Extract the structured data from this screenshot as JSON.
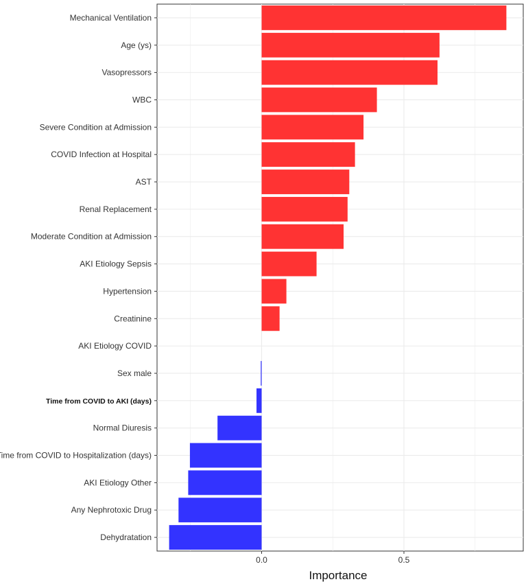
{
  "chart_data": {
    "type": "bar",
    "orientation": "horizontal",
    "title": "",
    "xlabel": "Importance",
    "ylabel": "",
    "xlim": [
      -0.325,
      0.925
    ],
    "x_ticks": [
      {
        "value": 0,
        "label": "0.0"
      },
      {
        "value": 0.5,
        "label": "0.5"
      }
    ],
    "grid": true,
    "positive_color": "#ff3333",
    "negative_color": "#3333ff",
    "categories": [
      {
        "label": "Mechanical Ventilation",
        "value": 0.86,
        "bold": false
      },
      {
        "label": "Age (ys)",
        "value": 0.625,
        "bold": false
      },
      {
        "label": "Vasopressors",
        "value": 0.618,
        "bold": false
      },
      {
        "label": "WBC",
        "value": 0.405,
        "bold": false
      },
      {
        "label": "Severe Condition at Admission",
        "value": 0.358,
        "bold": false
      },
      {
        "label": "COVID Infection at Hospital",
        "value": 0.328,
        "bold": false
      },
      {
        "label": "AST",
        "value": 0.308,
        "bold": false
      },
      {
        "label": "Renal Replacement",
        "value": 0.302,
        "bold": false
      },
      {
        "label": "Moderate Condition at Admission",
        "value": 0.288,
        "bold": false
      },
      {
        "label": "AKI Etiology Sepsis",
        "value": 0.193,
        "bold": false
      },
      {
        "label": "Hypertension",
        "value": 0.087,
        "bold": false
      },
      {
        "label": "Creatinine",
        "value": 0.063,
        "bold": false
      },
      {
        "label": "AKI Etiology COVID",
        "value": 0.0,
        "bold": false
      },
      {
        "label": "Sex male",
        "value": -0.003,
        "bold": false
      },
      {
        "label": "Time from COVID to AKI (days)",
        "value": -0.018,
        "bold": true
      },
      {
        "label": "Normal Diuresis",
        "value": -0.155,
        "bold": false
      },
      {
        "label": "Time from COVID to Hospitalization (days)",
        "value": -0.252,
        "bold": false
      },
      {
        "label": "AKI Etiology Other",
        "value": -0.258,
        "bold": false
      },
      {
        "label": "Any Nephrotoxic Drug",
        "value": -0.292,
        "bold": false
      },
      {
        "label": "Dehydratation",
        "value": -0.325,
        "bold": false
      }
    ]
  }
}
